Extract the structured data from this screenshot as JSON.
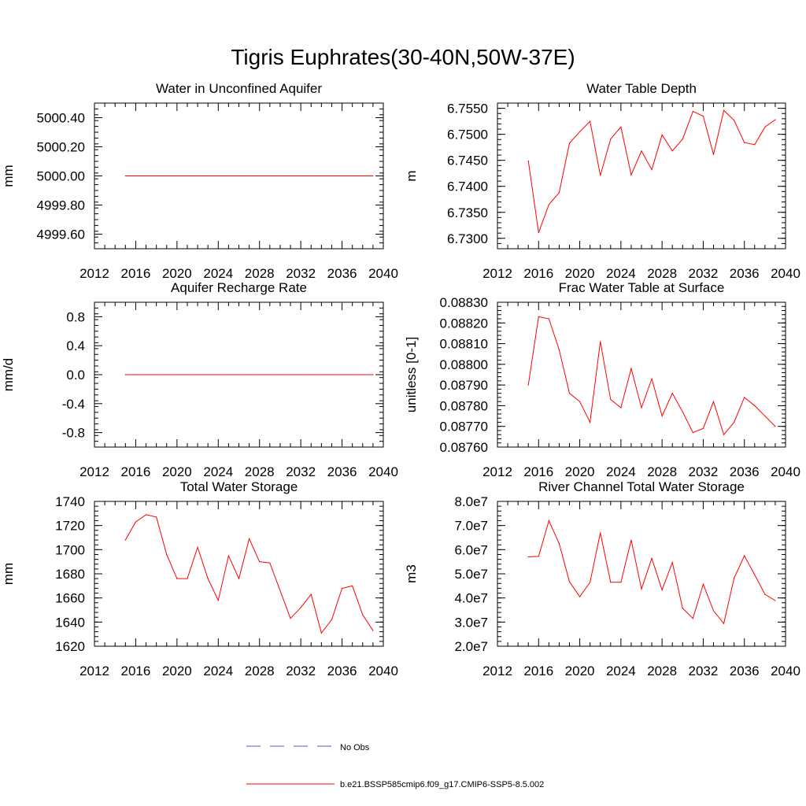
{
  "figure": {
    "title": "Tigris Euphrates(30-40N,50W-37E)"
  },
  "legend": {
    "items": [
      {
        "label": "No Obs",
        "color": "#5a5ac8",
        "dash": true
      },
      {
        "label": "b.e21.BSSP585cmip6.f09_g17.CMIP6-SSP5-8.5.002",
        "color": "#ff0000",
        "dash": false
      }
    ]
  },
  "chart_data": [
    {
      "type": "line",
      "title": "Water in Unconfined Aquifer",
      "ylabel": "mm",
      "xlim": [
        2012,
        2040
      ],
      "ylim": [
        4999.5,
        5000.5
      ],
      "xticks": [
        2012,
        2016,
        2020,
        2024,
        2028,
        2032,
        2036,
        2040
      ],
      "xtick_labels": [
        "2012",
        "2016",
        "2020",
        "2024",
        "2028",
        "2032",
        "2036",
        "2040"
      ],
      "yticks": [
        4999.6,
        4999.8,
        5000.0,
        5000.2,
        5000.4
      ],
      "ytick_labels": [
        "4999.60",
        "4999.80",
        "5000.00",
        "5000.20",
        "5000.40"
      ],
      "x": [
        2015,
        2016,
        2017,
        2018,
        2019,
        2020,
        2021,
        2022,
        2023,
        2024,
        2025,
        2026,
        2027,
        2028,
        2029,
        2030,
        2031,
        2032,
        2033,
        2034,
        2035,
        2036,
        2037,
        2038,
        2039
      ],
      "series": [
        {
          "color": "#ff0000",
          "values": [
            5000,
            5000,
            5000,
            5000,
            5000,
            5000,
            5000,
            5000,
            5000,
            5000,
            5000,
            5000,
            5000,
            5000,
            5000,
            5000,
            5000,
            5000,
            5000,
            5000,
            5000,
            5000,
            5000,
            5000,
            5000
          ]
        }
      ]
    },
    {
      "type": "line",
      "title": "Water Table Depth",
      "ylabel": "m",
      "xlim": [
        2012,
        2040
      ],
      "ylim": [
        6.728,
        6.756
      ],
      "xticks": [
        2012,
        2016,
        2020,
        2024,
        2028,
        2032,
        2036,
        2040
      ],
      "xtick_labels": [
        "2012",
        "2016",
        "2020",
        "2024",
        "2028",
        "2032",
        "2036",
        "2040"
      ],
      "yticks": [
        6.73,
        6.735,
        6.74,
        6.745,
        6.75,
        6.755
      ],
      "ytick_labels": [
        "6.7300",
        "6.7350",
        "6.7400",
        "6.7450",
        "6.7500",
        "6.7550"
      ],
      "x": [
        2015,
        2016,
        2017,
        2018,
        2019,
        2020,
        2021,
        2022,
        2023,
        2024,
        2025,
        2026,
        2027,
        2028,
        2029,
        2030,
        2031,
        2032,
        2033,
        2034,
        2035,
        2036,
        2037,
        2038,
        2039
      ],
      "series": [
        {
          "color": "#ff0000",
          "values": [
            6.7449,
            6.7311,
            6.7365,
            6.7388,
            6.7483,
            6.7505,
            6.7525,
            6.7421,
            6.7491,
            6.7514,
            6.7422,
            6.7468,
            6.7432,
            6.7499,
            6.7468,
            6.7491,
            6.7544,
            6.7535,
            6.7461,
            6.7546,
            6.7527,
            6.7484,
            6.748,
            6.7514,
            6.7528
          ]
        }
      ]
    },
    {
      "type": "line",
      "title": "Aquifer Recharge Rate",
      "ylabel": "mm/d",
      "xlim": [
        2012,
        2040
      ],
      "ylim": [
        -1.0,
        1.0
      ],
      "xticks": [
        2012,
        2016,
        2020,
        2024,
        2028,
        2032,
        2036,
        2040
      ],
      "xtick_labels": [
        "2012",
        "2016",
        "2020",
        "2024",
        "2028",
        "2032",
        "2036",
        "2040"
      ],
      "yticks": [
        -0.8,
        -0.4,
        0.0,
        0.4,
        0.8
      ],
      "ytick_labels": [
        "-0.8",
        "-0.4",
        "0.0",
        "0.4",
        "0.8"
      ],
      "x": [
        2015,
        2016,
        2017,
        2018,
        2019,
        2020,
        2021,
        2022,
        2023,
        2024,
        2025,
        2026,
        2027,
        2028,
        2029,
        2030,
        2031,
        2032,
        2033,
        2034,
        2035,
        2036,
        2037,
        2038,
        2039
      ],
      "series": [
        {
          "color": "#ff0000",
          "values": [
            0,
            0,
            0,
            0,
            0,
            0,
            0,
            0,
            0,
            0,
            0,
            0,
            0,
            0,
            0,
            0,
            0,
            0,
            0,
            0,
            0,
            0,
            0,
            0,
            0
          ]
        }
      ]
    },
    {
      "type": "line",
      "title": "Frac Water Table at Surface",
      "ylabel": "unitless [0-1]",
      "xlim": [
        2012,
        2040
      ],
      "ylim": [
        0.0876,
        0.0883
      ],
      "xticks": [
        2012,
        2016,
        2020,
        2024,
        2028,
        2032,
        2036,
        2040
      ],
      "xtick_labels": [
        "2012",
        "2016",
        "2020",
        "2024",
        "2028",
        "2032",
        "2036",
        "2040"
      ],
      "yticks": [
        0.0876,
        0.0877,
        0.0878,
        0.0879,
        0.088,
        0.0881,
        0.0882,
        0.0883
      ],
      "ytick_labels": [
        "0.08760",
        "0.08770",
        "0.08780",
        "0.08790",
        "0.08800",
        "0.08810",
        "0.08820",
        "0.08830"
      ],
      "x": [
        2015,
        2016,
        2017,
        2018,
        2019,
        2020,
        2021,
        2022,
        2023,
        2024,
        2025,
        2026,
        2027,
        2028,
        2029,
        2030,
        2031,
        2032,
        2033,
        2034,
        2035,
        2036,
        2037,
        2038,
        2039
      ],
      "series": [
        {
          "color": "#ff0000",
          "values": [
            0.0879,
            0.08823,
            0.08822,
            0.08807,
            0.08786,
            0.08782,
            0.08772,
            0.08811,
            0.08783,
            0.08779,
            0.08798,
            0.08779,
            0.08793,
            0.08775,
            0.08786,
            0.08777,
            0.08767,
            0.08769,
            0.08782,
            0.08766,
            0.08772,
            0.08784,
            0.0878,
            0.08775,
            0.0877
          ]
        }
      ]
    },
    {
      "type": "line",
      "title": "Total Water Storage",
      "ylabel": "mm",
      "xlim": [
        2012,
        2040
      ],
      "ylim": [
        1620,
        1740
      ],
      "xticks": [
        2012,
        2016,
        2020,
        2024,
        2028,
        2032,
        2036,
        2040
      ],
      "xtick_labels": [
        "2012",
        "2016",
        "2020",
        "2024",
        "2028",
        "2032",
        "2036",
        "2040"
      ],
      "yticks": [
        1620,
        1640,
        1660,
        1680,
        1700,
        1720,
        1740
      ],
      "ytick_labels": [
        "1620",
        "1640",
        "1660",
        "1680",
        "1700",
        "1720",
        "1740"
      ],
      "x": [
        2015,
        2016,
        2017,
        2018,
        2019,
        2020,
        2021,
        2022,
        2023,
        2024,
        2025,
        2026,
        2027,
        2028,
        2029,
        2030,
        2031,
        2032,
        2033,
        2034,
        2035,
        2036,
        2037,
        2038,
        2039
      ],
      "series": [
        {
          "color": "#ff0000",
          "values": [
            1708,
            1723,
            1729,
            1727,
            1696,
            1676,
            1676,
            1702,
            1676,
            1658,
            1695,
            1676,
            1709,
            1690,
            1689,
            1666,
            1643,
            1652,
            1663,
            1631,
            1642,
            1668,
            1670,
            1646,
            1633
          ]
        }
      ]
    },
    {
      "type": "line",
      "title": "River Channel Total Water Storage",
      "ylabel": "m3",
      "xlim": [
        2012,
        2040
      ],
      "ylim": [
        20000000,
        80000000
      ],
      "xticks": [
        2012,
        2016,
        2020,
        2024,
        2028,
        2032,
        2036,
        2040
      ],
      "xtick_labels": [
        "2012",
        "2016",
        "2020",
        "2024",
        "2028",
        "2032",
        "2036",
        "2040"
      ],
      "yticks": [
        20000000,
        30000000,
        40000000,
        50000000,
        60000000,
        70000000,
        80000000
      ],
      "ytick_labels": [
        "2.0e7",
        "3.0e7",
        "4.0e7",
        "5.0e7",
        "6.0e7",
        "7.0e7",
        "8.0e7"
      ],
      "x": [
        2015,
        2016,
        2017,
        2018,
        2019,
        2020,
        2021,
        2022,
        2023,
        2024,
        2025,
        2026,
        2027,
        2028,
        2029,
        2030,
        2031,
        2032,
        2033,
        2034,
        2035,
        2036,
        2037,
        2038,
        2039
      ],
      "series": [
        {
          "color": "#ff0000",
          "values": [
            57000000,
            57200000,
            72000000,
            62500000,
            46700000,
            40500000,
            46500000,
            67000000,
            46500000,
            46500000,
            64000000,
            43700000,
            56400000,
            43300000,
            54700000,
            35700000,
            31500000,
            45700000,
            34700000,
            29400000,
            48200000,
            57500000,
            49600000,
            41500000,
            38900000
          ]
        }
      ]
    }
  ]
}
